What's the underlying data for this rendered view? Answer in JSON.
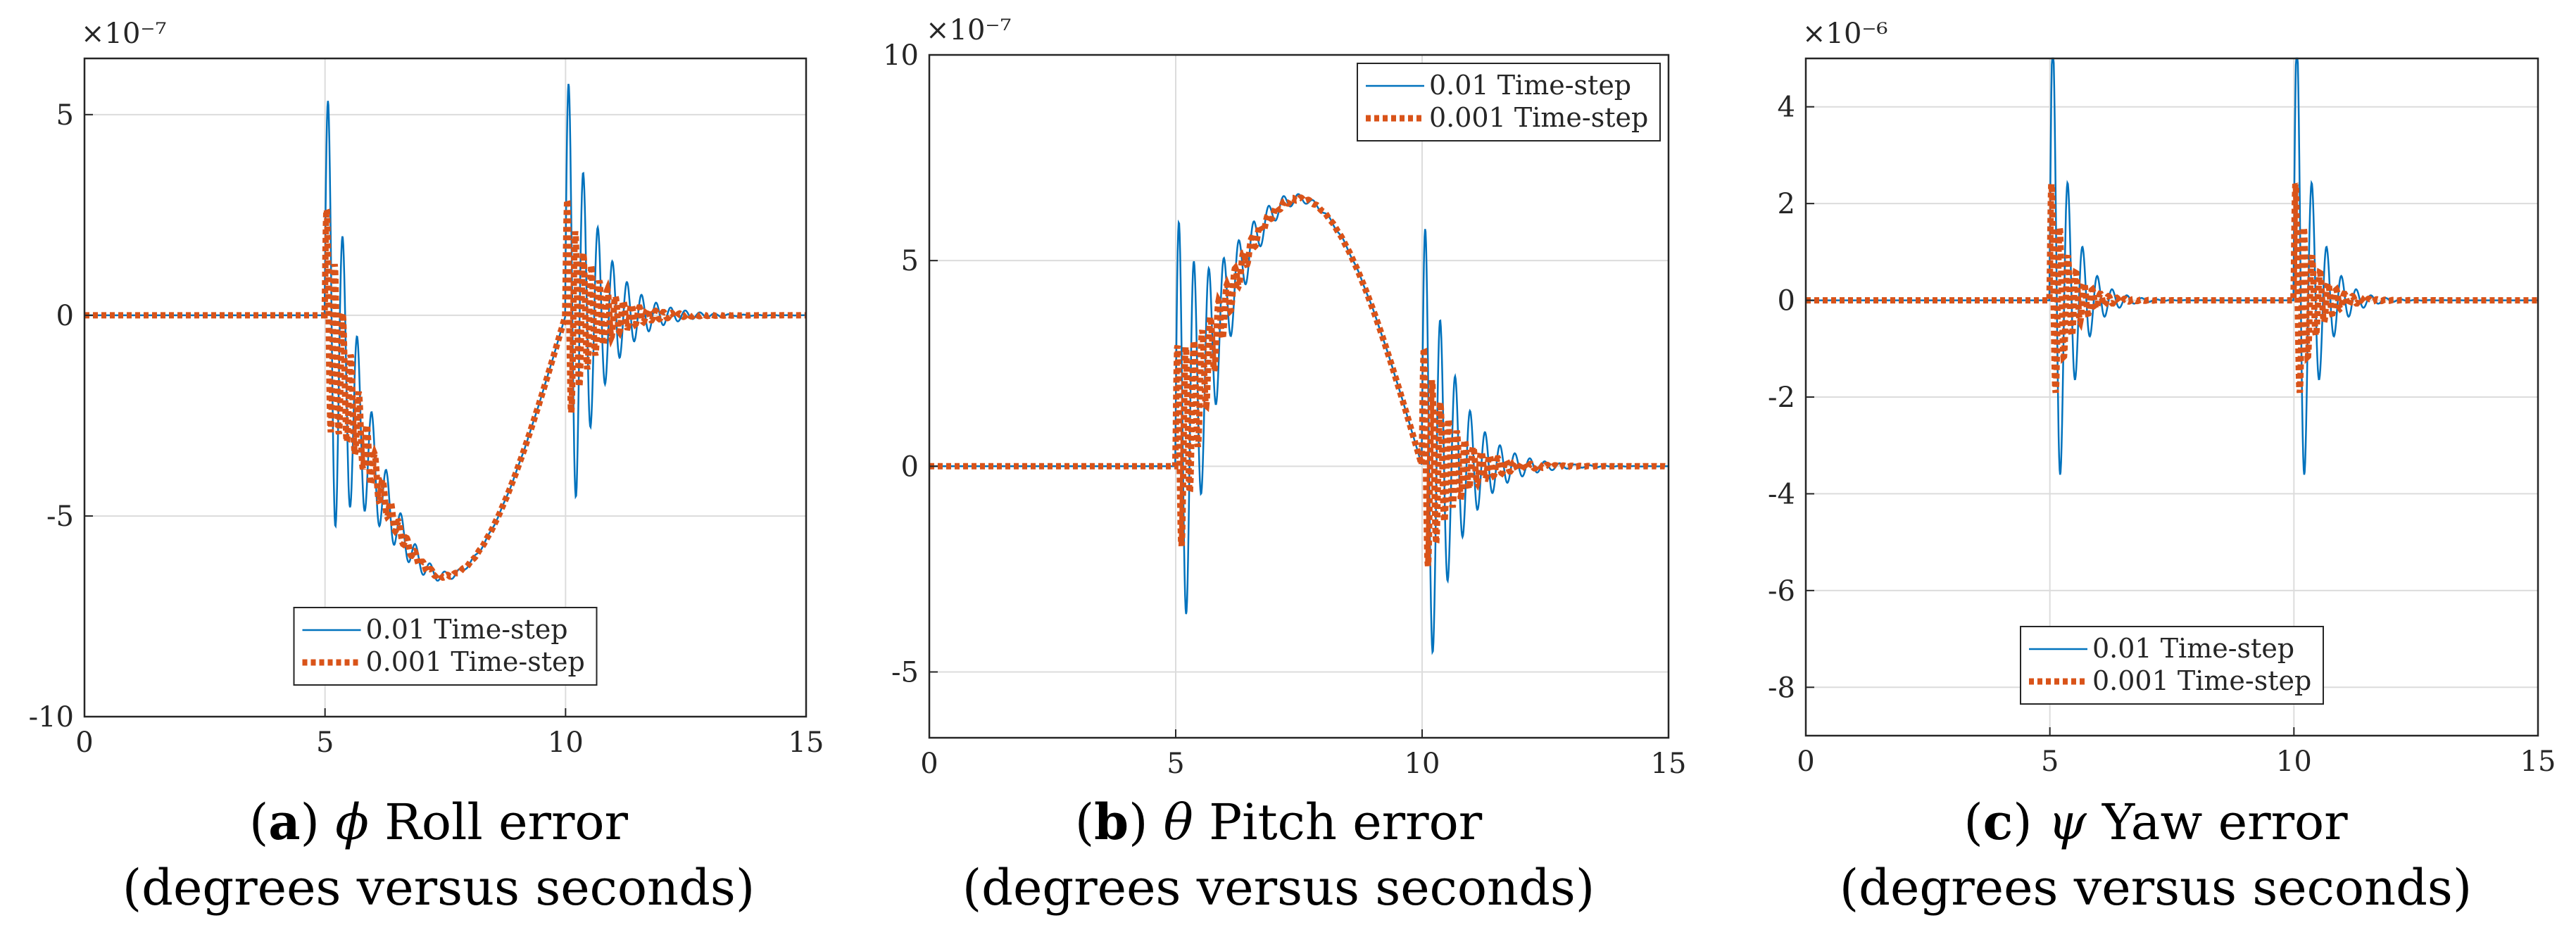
{
  "figure": {
    "colors": {
      "blue": "#0072BD",
      "orange": "#D95319",
      "grid": "#dcdcdc",
      "axis": "#262626"
    }
  },
  "chart_data": [
    {
      "id": "a",
      "type": "line",
      "xlim": [
        0,
        15
      ],
      "ylim": [
        -10,
        6.4
      ],
      "xticks": [
        0,
        5,
        10,
        15
      ],
      "xtick_labels": [
        "0",
        "5",
        "10",
        "15"
      ],
      "yticks": [
        -10,
        -5,
        0,
        5
      ],
      "ytick_labels": [
        "-10",
        "-5",
        "0",
        "5"
      ],
      "exponent_label": "×10⁻⁷",
      "grid": true,
      "legend_position": "bottom-center",
      "series": [
        {
          "name": "0.01 Time-step",
          "style": "solid"
        },
        {
          "name": "0.001 Time-step",
          "style": "dotted"
        }
      ],
      "model": {
        "base": "roll",
        "amp": -6.5,
        "osc1": 6.2,
        "osc2": 6.4,
        "fast1": 3.0,
        "fast2": 3.0,
        "decay": 1.6
      },
      "caption": {
        "letter": "a",
        "symbol": "ϕ",
        "text": "Roll error",
        "line2": "(degrees versus seconds)"
      }
    },
    {
      "id": "b",
      "type": "line",
      "xlim": [
        0,
        15
      ],
      "ylim": [
        -6.6,
        10
      ],
      "xticks": [
        0,
        5,
        10,
        15
      ],
      "xtick_labels": [
        "0",
        "5",
        "10",
        "15"
      ],
      "yticks": [
        -5,
        0,
        5,
        10
      ],
      "ytick_labels": [
        "-5",
        "0",
        "5",
        "10"
      ],
      "exponent_label": "×10⁻⁷",
      "grid": true,
      "legend_position": "top-right",
      "series": [
        {
          "name": "0.01 Time-step",
          "style": "solid"
        },
        {
          "name": "0.001 Time-step",
          "style": "dotted"
        }
      ],
      "model": {
        "base": "pitch",
        "amp": 6.5,
        "osc1": 6.3,
        "osc2": 6.4,
        "fast1": 3.0,
        "fast2": 3.0,
        "decay": 1.6
      },
      "caption": {
        "letter": "b",
        "symbol": "θ",
        "text": "Pitch error",
        "line2": "(degrees versus seconds)"
      }
    },
    {
      "id": "c",
      "type": "line",
      "xlim": [
        0,
        15
      ],
      "ylim": [
        -9,
        5
      ],
      "xticks": [
        0,
        5,
        10,
        15
      ],
      "xtick_labels": [
        "0",
        "5",
        "10",
        "15"
      ],
      "yticks": [
        -8,
        -6,
        -4,
        -2,
        0,
        2,
        4
      ],
      "ytick_labels": [
        "-8",
        "-6",
        "-4",
        "-2",
        "0",
        "2",
        "4"
      ],
      "exponent_label": "×10⁻⁶",
      "grid": true,
      "legend_position": "bottom-center",
      "series": [
        {
          "name": "0.01 Time-step",
          "style": "solid"
        },
        {
          "name": "0.001 Time-step",
          "style": "dotted"
        }
      ],
      "model": {
        "base": "none",
        "amp": 0,
        "osc1": 6.3,
        "osc2": 6.3,
        "fast1": 2.7,
        "fast2": 2.7,
        "decay": 2.6
      },
      "caption": {
        "letter": "c",
        "symbol": "ψ",
        "text": "Yaw error",
        "line2": "(degrees versus seconds)"
      }
    }
  ]
}
